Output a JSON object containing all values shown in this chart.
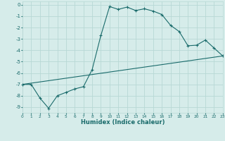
{
  "xlabel": "Humidex (Indice chaleur)",
  "background_color": "#d6ecea",
  "grid_color": "#b8d8d5",
  "line_color": "#1a6b6b",
  "xlim": [
    0,
    23
  ],
  "ylim": [
    -9.5,
    0.3
  ],
  "xticks": [
    0,
    1,
    2,
    3,
    4,
    5,
    6,
    7,
    8,
    9,
    10,
    11,
    12,
    13,
    14,
    15,
    16,
    17,
    18,
    19,
    20,
    21,
    22,
    23
  ],
  "yticks": [
    0,
    -1,
    -2,
    -3,
    -4,
    -5,
    -6,
    -7,
    -8,
    -9
  ],
  "curve1_x": [
    0,
    1,
    2,
    3,
    4,
    5,
    6,
    7,
    8,
    9,
    10,
    11,
    12,
    13,
    14,
    15,
    16,
    17,
    18,
    19,
    20,
    21,
    22,
    23
  ],
  "curve1_y": [
    -7.0,
    -7.0,
    -8.2,
    -9.1,
    -8.0,
    -7.7,
    -7.4,
    -7.2,
    -5.7,
    -2.7,
    -0.15,
    -0.4,
    -0.2,
    -0.5,
    -0.35,
    -0.55,
    -0.85,
    -1.8,
    -2.35,
    -3.6,
    -3.55,
    -3.1,
    -3.8,
    -4.5
  ],
  "curve2_x": [
    0,
    23
  ],
  "curve2_y": [
    -7.0,
    -4.5
  ]
}
